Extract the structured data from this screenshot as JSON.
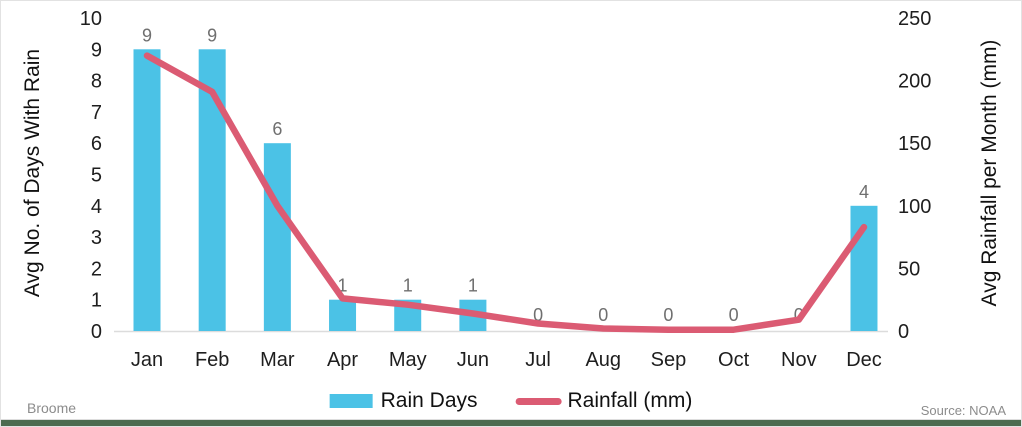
{
  "chart_data": {
    "type": "bar",
    "subtype": "combo-bar-line-dual-axis",
    "title": "",
    "categories": [
      "Jan",
      "Feb",
      "Mar",
      "Apr",
      "May",
      "Jun",
      "Jul",
      "Aug",
      "Sep",
      "Oct",
      "Nov",
      "Dec"
    ],
    "series": [
      {
        "name": "Rain Days",
        "type": "bar",
        "axis": "left",
        "color": "#4BC2E6",
        "values": [
          9,
          9,
          6,
          1,
          1,
          1,
          0,
          0,
          0,
          0,
          0,
          4
        ],
        "data_labels": [
          "9",
          "9",
          "6",
          "1",
          "1",
          "1",
          "0",
          "0",
          "0",
          "0",
          "0",
          "4"
        ]
      },
      {
        "name": "Rainfall (mm)",
        "type": "line",
        "axis": "right",
        "color": "#DB5B73",
        "values": [
          220,
          191,
          100,
          26,
          21,
          14,
          6,
          2,
          1,
          1,
          9,
          83
        ]
      }
    ],
    "ylabel_left": "Avg No. of Days With Rain",
    "ylabel_right": "Avg Rainfall per Month (mm)",
    "xlabel": "",
    "left_axis": {
      "min": 0,
      "max": 10,
      "ticks": [
        0,
        1,
        2,
        3,
        4,
        5,
        6,
        7,
        8,
        9,
        10
      ]
    },
    "right_axis": {
      "min": 0,
      "max": 250,
      "ticks": [
        0,
        50,
        100,
        150,
        200,
        250
      ]
    },
    "grid": false,
    "legend_position": "bottom"
  },
  "footer": {
    "location": "Broome",
    "source": "Source: NOAA"
  },
  "colors": {
    "bar": "#4BC2E6",
    "line": "#DB5B73",
    "data_label": "#6F6F6F",
    "tick_text": "#1e1e1e",
    "axis_line": "#dcdcdc",
    "footer_text": "#8c8c8c",
    "bottom_bar": "#4B6B4F",
    "border": "#e2e2e2"
  }
}
